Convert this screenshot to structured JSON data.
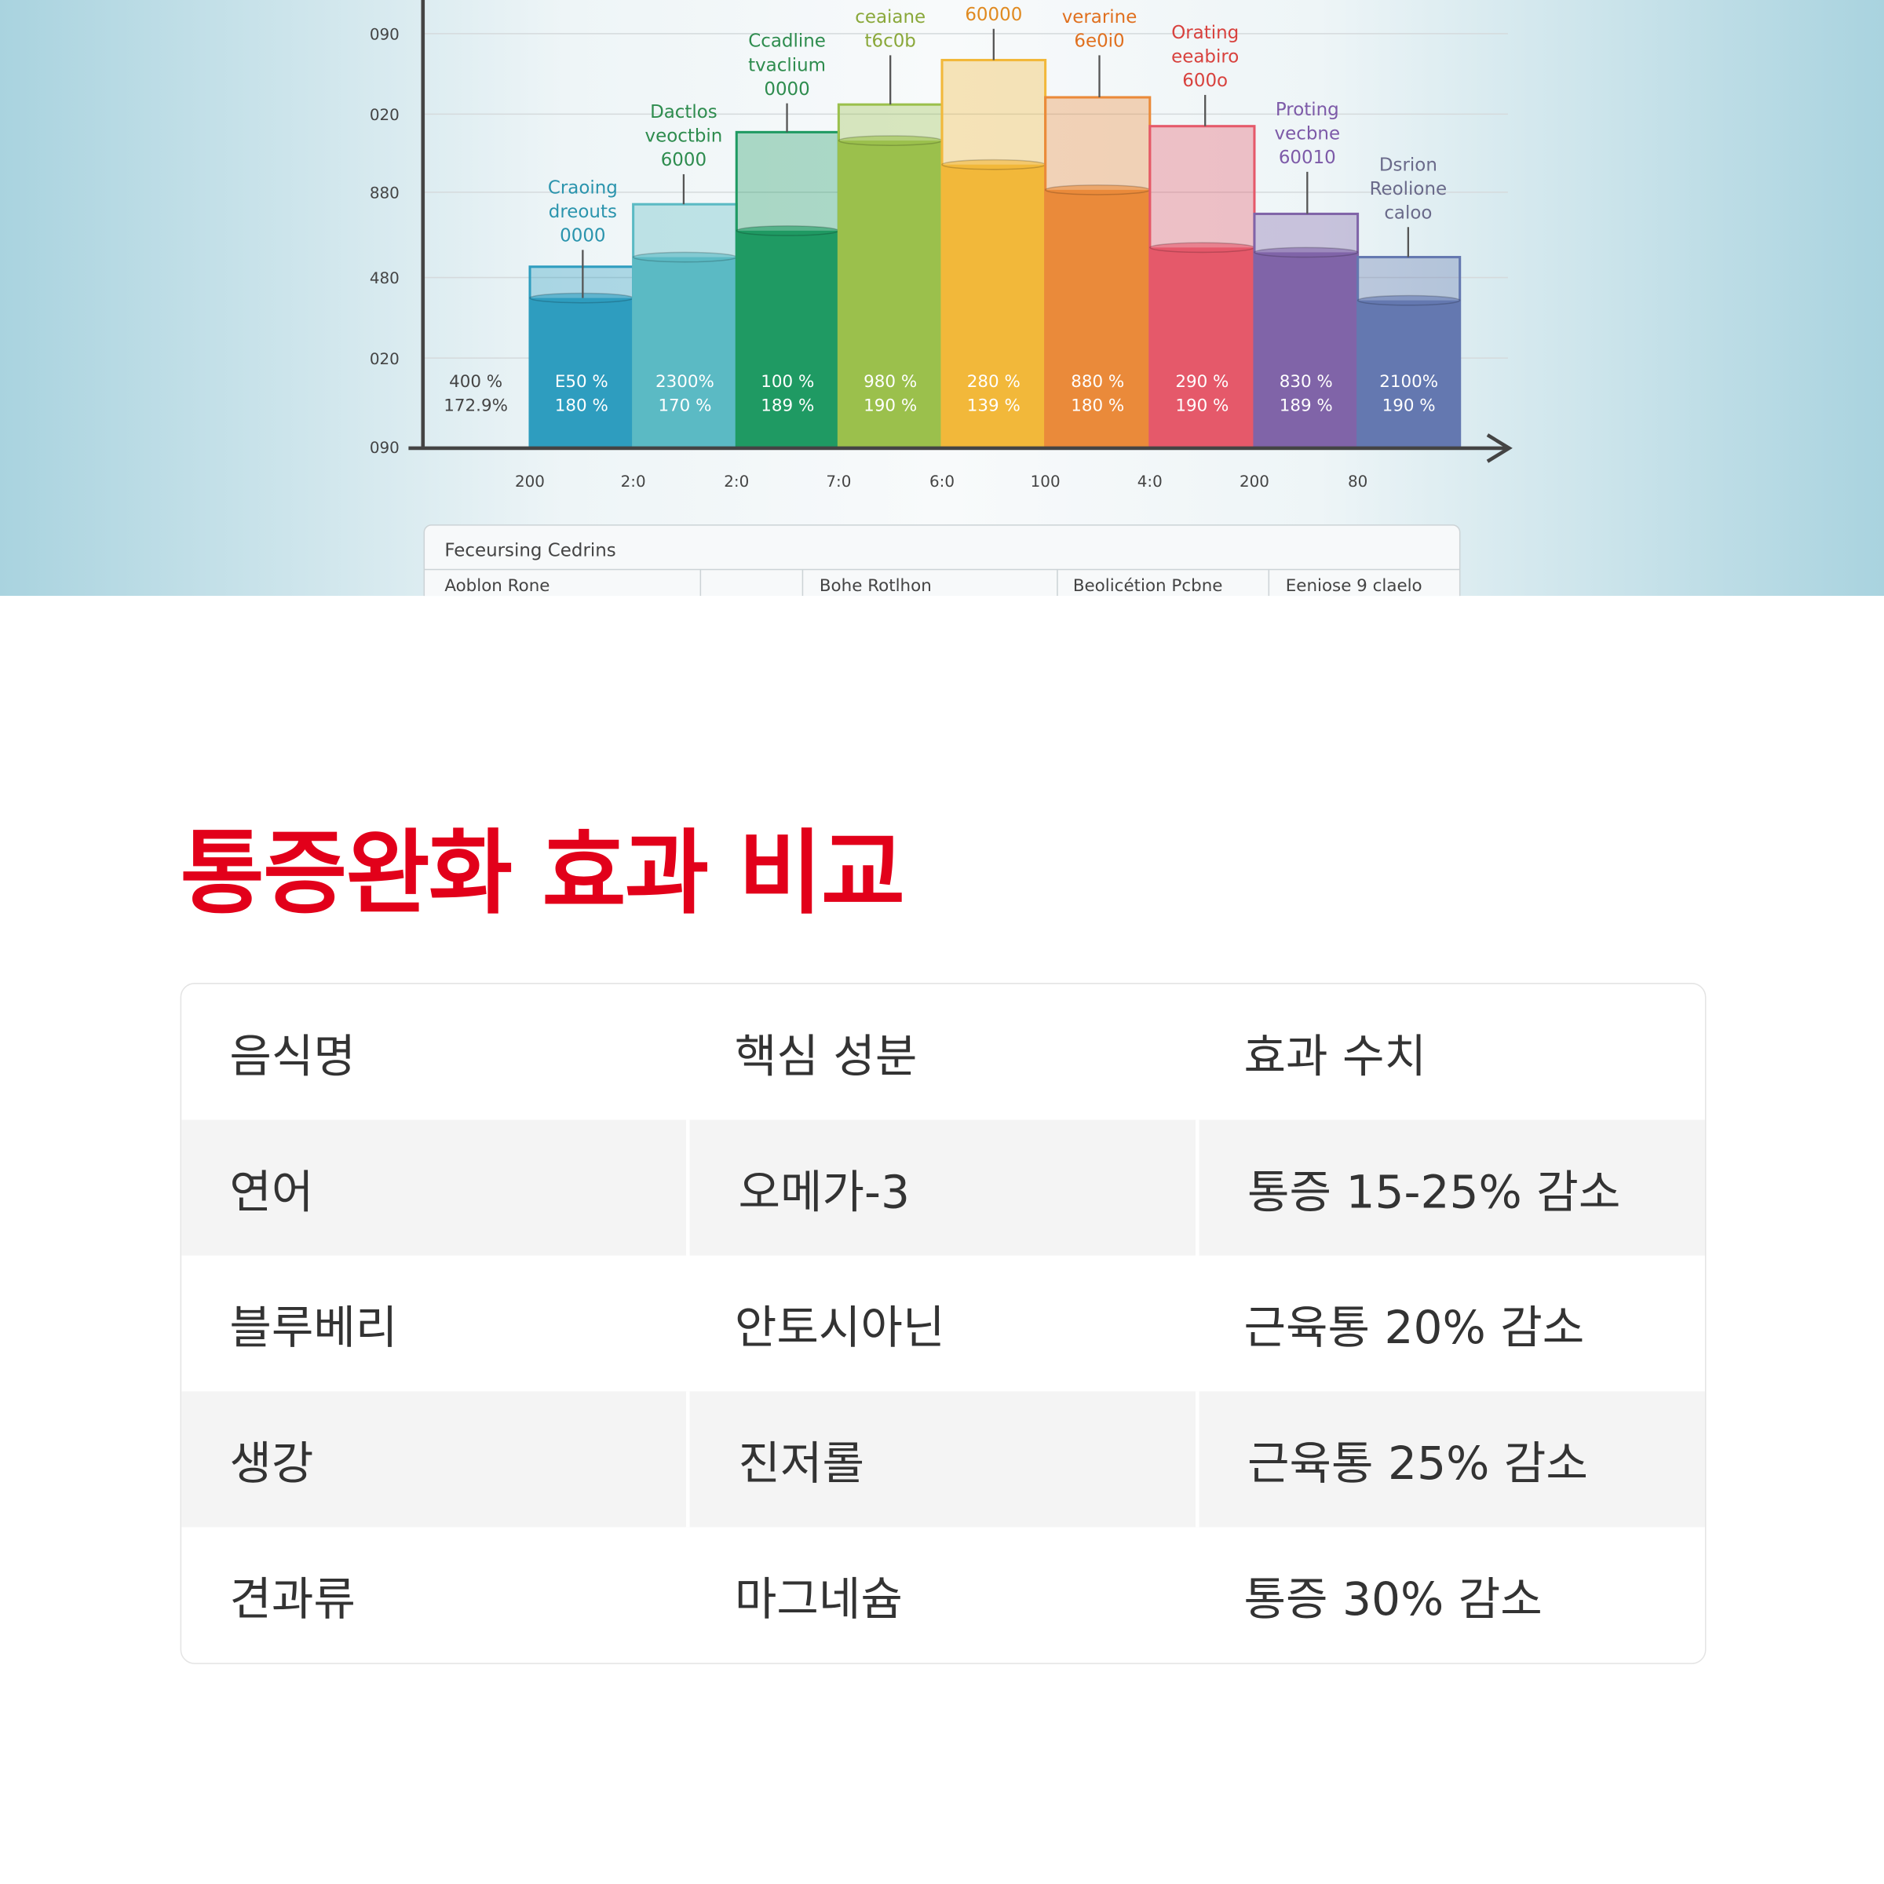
{
  "illustration": {
    "y_axis_labels": [
      "090",
      "020",
      "880",
      "480",
      "020",
      "090"
    ],
    "x_axis_labels": [
      "200",
      "2:0",
      "2:0",
      "7:0",
      "6:0",
      "100",
      "4:0",
      "200",
      "80"
    ],
    "left_label": [
      "400 %",
      "172.9%"
    ],
    "bar_labels": [
      [
        "E50 %",
        "180 %"
      ],
      [
        "2300%",
        "170 %"
      ],
      [
        "100 %",
        "189 %"
      ],
      [
        "980 %",
        "190 %"
      ],
      [
        "280 %",
        "139 %"
      ],
      [
        "880 %",
        "180 %"
      ],
      [
        "290 %",
        "190 %"
      ],
      [
        "830 %",
        "189 %"
      ],
      [
        "2100%",
        "190 %"
      ]
    ],
    "annotations": [
      [
        "Craoing",
        "dreouts",
        "0000"
      ],
      [
        "Dactlos",
        "veoctbin",
        "6000"
      ],
      [
        "Ccadline",
        "tvaclium",
        "0000"
      ],
      [
        "ceaiane",
        "t6c0b"
      ],
      [
        "60000"
      ],
      [
        "verarine",
        "6e0i0"
      ],
      [
        "Orating",
        "eeabiro",
        "600o"
      ],
      [
        "Proting",
        "vecbne",
        "60010"
      ],
      [
        "Dsrion",
        "Reolione",
        "caloo"
      ]
    ],
    "legend": {
      "title": "Feceursing Cedrins",
      "columns": [
        "Aoblon Rone",
        "Bohe Rotlhon",
        "Beolicétion Pcbne",
        "Eeniose 9 claelo"
      ]
    }
  },
  "section": {
    "title": "통증완화 효과 비교",
    "table": {
      "header": [
        "음식명",
        "핵심 성분",
        "효과 수치"
      ],
      "rows": [
        [
          "연어",
          "오메가-3",
          "통증 15-25% 감소"
        ],
        [
          "블루베리",
          "안토시아닌",
          "근육통 20% 감소"
        ],
        [
          "생강",
          "진저롤",
          "근육통 25% 감소"
        ],
        [
          "견과류",
          "마그네슘",
          "통증 30% 감소"
        ]
      ]
    }
  }
}
